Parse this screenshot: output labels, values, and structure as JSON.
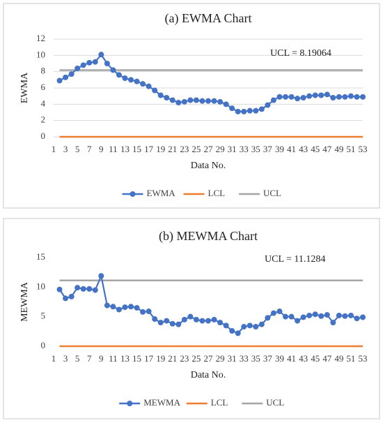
{
  "chart_data": [
    {
      "type": "line",
      "title": "(a) EWMA Chart",
      "x_label": "Data No.",
      "y_label": "EWMA",
      "annotation": "UCL = 8.19064",
      "x": [
        2,
        3,
        4,
        5,
        6,
        7,
        8,
        9,
        10,
        11,
        12,
        13,
        14,
        15,
        16,
        17,
        18,
        19,
        20,
        21,
        22,
        23,
        24,
        25,
        26,
        27,
        28,
        29,
        30,
        31,
        32,
        33,
        34,
        35,
        36,
        37,
        38,
        39,
        40,
        41,
        42,
        43,
        44,
        45,
        46,
        47,
        48,
        49,
        50,
        51,
        52,
        53
      ],
      "xlim": [
        1,
        53
      ],
      "xticks": [
        1,
        3,
        5,
        7,
        9,
        11,
        13,
        15,
        17,
        19,
        21,
        23,
        25,
        27,
        29,
        31,
        33,
        35,
        37,
        39,
        41,
        43,
        45,
        47,
        49,
        51,
        53
      ],
      "ylim": [
        0,
        12
      ],
      "yticks": [
        0,
        2,
        4,
        6,
        8,
        10,
        12
      ],
      "grid": true,
      "legend": "bottom",
      "series": [
        {
          "name": "EWMA",
          "color": "#4472c4",
          "marker": true,
          "values": [
            6.9,
            7.3,
            7.7,
            8.4,
            8.8,
            9.1,
            9.2,
            10.1,
            9.0,
            8.2,
            7.6,
            7.2,
            7.0,
            6.8,
            6.5,
            6.2,
            5.7,
            5.1,
            4.8,
            4.5,
            4.2,
            4.3,
            4.5,
            4.5,
            4.4,
            4.4,
            4.4,
            4.3,
            4.0,
            3.5,
            3.1,
            3.1,
            3.2,
            3.2,
            3.4,
            3.9,
            4.5,
            4.9,
            4.9,
            4.9,
            4.7,
            4.8,
            5.0,
            5.1,
            5.1,
            5.2,
            4.8,
            4.9,
            4.9,
            5.0,
            4.9,
            4.9
          ]
        },
        {
          "name": "LCL",
          "color": "#ed7d31",
          "marker": false,
          "values": [
            0,
            0,
            0,
            0,
            0,
            0,
            0,
            0,
            0,
            0,
            0,
            0,
            0,
            0,
            0,
            0,
            0,
            0,
            0,
            0,
            0,
            0,
            0,
            0,
            0,
            0,
            0,
            0,
            0,
            0,
            0,
            0,
            0,
            0,
            0,
            0,
            0,
            0,
            0,
            0,
            0,
            0,
            0,
            0,
            0,
            0,
            0,
            0,
            0,
            0,
            0,
            0
          ]
        },
        {
          "name": "UCL",
          "color": "#a5a5a5",
          "marker": false,
          "values": [
            8.19064,
            8.19064,
            8.19064,
            8.19064,
            8.19064,
            8.19064,
            8.19064,
            8.19064,
            8.19064,
            8.19064,
            8.19064,
            8.19064,
            8.19064,
            8.19064,
            8.19064,
            8.19064,
            8.19064,
            8.19064,
            8.19064,
            8.19064,
            8.19064,
            8.19064,
            8.19064,
            8.19064,
            8.19064,
            8.19064,
            8.19064,
            8.19064,
            8.19064,
            8.19064,
            8.19064,
            8.19064,
            8.19064,
            8.19064,
            8.19064,
            8.19064,
            8.19064,
            8.19064,
            8.19064,
            8.19064,
            8.19064,
            8.19064,
            8.19064,
            8.19064,
            8.19064,
            8.19064,
            8.19064,
            8.19064,
            8.19064,
            8.19064,
            8.19064,
            8.19064
          ]
        }
      ]
    },
    {
      "type": "line",
      "title": "(b) MEWMA Chart",
      "x_label": "Data No.",
      "y_label": "MEWMA",
      "annotation": "UCL = 11.1284",
      "x": [
        2,
        3,
        4,
        5,
        6,
        7,
        8,
        9,
        10,
        11,
        12,
        13,
        14,
        15,
        16,
        17,
        18,
        19,
        20,
        21,
        22,
        23,
        24,
        25,
        26,
        27,
        28,
        29,
        30,
        31,
        32,
        33,
        34,
        35,
        36,
        37,
        38,
        39,
        40,
        41,
        42,
        43,
        44,
        45,
        46,
        47,
        48,
        49,
        50,
        51,
        52,
        53
      ],
      "xlim": [
        1,
        53
      ],
      "xticks": [
        1,
        3,
        5,
        7,
        9,
        11,
        13,
        15,
        17,
        19,
        21,
        23,
        25,
        27,
        29,
        31,
        33,
        35,
        37,
        39,
        41,
        43,
        45,
        47,
        49,
        51,
        53
      ],
      "ylim": [
        0,
        15
      ],
      "yticks": [
        0,
        5,
        10,
        15
      ],
      "grid": false,
      "legend": "bottom",
      "series": [
        {
          "name": "MEWMA",
          "color": "#4472c4",
          "marker": true,
          "values": [
            9.6,
            8.1,
            8.4,
            9.9,
            9.7,
            9.7,
            9.5,
            11.9,
            6.9,
            6.7,
            6.2,
            6.6,
            6.7,
            6.5,
            5.8,
            5.9,
            4.6,
            4.0,
            4.3,
            3.8,
            3.7,
            4.5,
            5.0,
            4.5,
            4.3,
            4.3,
            4.5,
            4.0,
            3.5,
            2.6,
            2.2,
            3.3,
            3.5,
            3.3,
            3.7,
            4.8,
            5.6,
            5.9,
            5.0,
            5.0,
            4.3,
            4.9,
            5.2,
            5.4,
            5.1,
            5.3,
            4.0,
            5.2,
            5.1,
            5.2,
            4.7,
            4.9
          ]
        },
        {
          "name": "LCL",
          "color": "#ed7d31",
          "marker": false,
          "values": [
            0,
            0,
            0,
            0,
            0,
            0,
            0,
            0,
            0,
            0,
            0,
            0,
            0,
            0,
            0,
            0,
            0,
            0,
            0,
            0,
            0,
            0,
            0,
            0,
            0,
            0,
            0,
            0,
            0,
            0,
            0,
            0,
            0,
            0,
            0,
            0,
            0,
            0,
            0,
            0,
            0,
            0,
            0,
            0,
            0,
            0,
            0,
            0,
            0,
            0,
            0,
            0
          ]
        },
        {
          "name": "UCL",
          "color": "#a5a5a5",
          "marker": false,
          "values": [
            11.1284,
            11.1284,
            11.1284,
            11.1284,
            11.1284,
            11.1284,
            11.1284,
            11.1284,
            11.1284,
            11.1284,
            11.1284,
            11.1284,
            11.1284,
            11.1284,
            11.1284,
            11.1284,
            11.1284,
            11.1284,
            11.1284,
            11.1284,
            11.1284,
            11.1284,
            11.1284,
            11.1284,
            11.1284,
            11.1284,
            11.1284,
            11.1284,
            11.1284,
            11.1284,
            11.1284,
            11.1284,
            11.1284,
            11.1284,
            11.1284,
            11.1284,
            11.1284,
            11.1284,
            11.1284,
            11.1284,
            11.1284,
            11.1284,
            11.1284,
            11.1284,
            11.1284,
            11.1284,
            11.1284,
            11.1284,
            11.1284,
            11.1284,
            11.1284,
            11.1284
          ]
        }
      ]
    }
  ]
}
